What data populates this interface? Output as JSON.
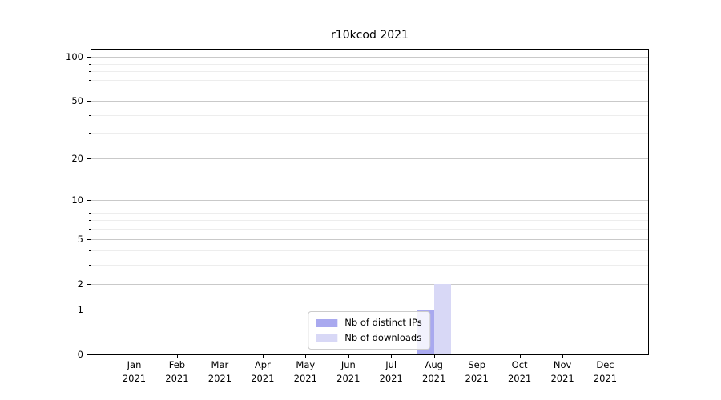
{
  "chart_data": {
    "type": "bar",
    "title": "r10kcod 2021",
    "x_axis": {
      "months": [
        "Jan",
        "Feb",
        "Mar",
        "Apr",
        "May",
        "Jun",
        "Jul",
        "Aug",
        "Sep",
        "Oct",
        "Nov",
        "Dec"
      ],
      "year": "2021"
    },
    "y_axis": {
      "scale": "log1p",
      "ymin": 0,
      "ymax": 112,
      "major_ticks": [
        0,
        1,
        2,
        5,
        10,
        20,
        50,
        100
      ],
      "minor_ticks": [
        3,
        4,
        6,
        7,
        8,
        9,
        30,
        40,
        60,
        70,
        80,
        90
      ]
    },
    "series": [
      {
        "name": "Nb of distinct IPs",
        "color": "#a9a9ef",
        "values": [
          0,
          0,
          0,
          0,
          0,
          0,
          0,
          1,
          0,
          0,
          0,
          0
        ]
      },
      {
        "name": "Nb of downloads",
        "color": "#d8d8f6",
        "values": [
          0,
          0,
          0,
          0,
          0,
          0,
          0,
          2,
          0,
          0,
          0,
          0
        ]
      }
    ],
    "legend_position": "lower center",
    "grid": {
      "major_color": "#c9c9c9",
      "minor_color": "#ededed"
    }
  }
}
